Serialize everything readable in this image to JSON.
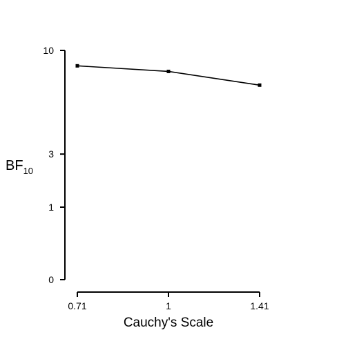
{
  "chart_data": {
    "type": "line",
    "title": "",
    "xlabel": "Cauchy's Scale",
    "ylabel": {
      "main": "BF",
      "subscript": "10"
    },
    "x_categories": [
      "0.71",
      "1",
      "1.41"
    ],
    "x_values": [
      0.71,
      1,
      1.41
    ],
    "series": [
      {
        "values": [
          8.7,
          8.25,
          7.2
        ]
      }
    ],
    "y_ticks": [
      0,
      1,
      3,
      10
    ],
    "y_tick_labels": [
      "0",
      "1",
      "3",
      "10"
    ],
    "ylim": [
      0,
      10
    ],
    "grid": false,
    "legend": "none",
    "colors": {
      "line": "#000000",
      "axis": "#000000",
      "background": "#ffffff"
    }
  }
}
